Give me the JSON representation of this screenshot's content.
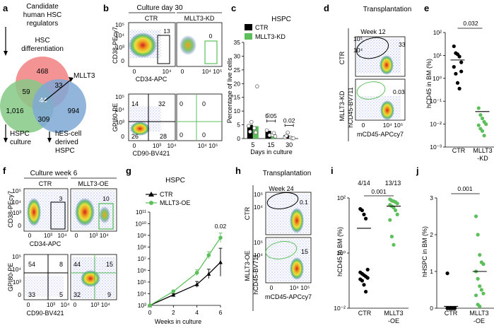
{
  "panels": {
    "a": {
      "label": "a",
      "title_line1": "Candidate",
      "title_line2": "human HSC",
      "title_line3": "regulators",
      "hsc_diff_line1": "HSC",
      "hsc_diff_line2": "differentiation",
      "venn_counts": [
        "468",
        "59",
        "33",
        "1,016",
        "44",
        "309",
        "994"
      ],
      "callout": "MLLT3",
      "hspc_culture_line1": "HSPC",
      "hspc_culture_line2": "culture",
      "hes_line1": "hES-cell",
      "hes_line2": "derived",
      "hes_line3": "HSPC"
    },
    "b": {
      "label": "b",
      "title": "Culture day 30",
      "col_ctr": "CTR",
      "col_kd": "MLLT3-KD",
      "top_ylabel": "CD38-PEcy7",
      "top_xlabel": "CD34-APC",
      "top_gate_ctr": "13",
      "top_gate_kd": "0",
      "bottom_ylabel": "GPI80-PE",
      "bottom_xlabel": "CD90-BV421",
      "ctr_quadrants": [
        "14",
        "32",
        "26",
        "28"
      ],
      "kd_quadrants": [
        "0",
        "0",
        "0",
        "0"
      ]
    },
    "c": {
      "label": "c",
      "title": "HSPC"
    },
    "d": {
      "label": "d",
      "title": "Transplantation",
      "week": "Week 12",
      "row_ctr": "CTR",
      "row_kd": "MLLT3-KD",
      "ylabel": "hCD45-BV711",
      "xlabel": "mCD45-APCcy7",
      "gate_ctr": "33",
      "gate_kd": "0.03"
    },
    "e": {
      "label": "e",
      "ylabel": "hCD45 in BM (%)",
      "pvalue": "0.032",
      "cat1": "CTR",
      "cat2_line1": "MLLT3",
      "cat2_line2": "-KD"
    },
    "f": {
      "label": "f",
      "title": "Culture week 6",
      "col_ctr": "CTR",
      "col_oe": "MLLT3-OE",
      "top_ylabel": "CD38-PEcy7",
      "top_xlabel": "CD34-APC",
      "top_gate_ctr": "3",
      "top_gate_oe": "10",
      "bottom_ylabel": "GPI80-PE",
      "bottom_xlabel": "CD90-BV421",
      "ctr_quadrants": [
        "54",
        "8",
        "33",
        "5"
      ],
      "oe_quadrants": [
        "44",
        "15",
        "32",
        "9"
      ]
    },
    "g": {
      "label": "g",
      "title": "HSPC"
    },
    "h": {
      "label": "h",
      "title": "Transplantation",
      "week": "Week 24",
      "row_ctr": "CTR",
      "row_oe": "MLLT3-OE",
      "ylabel": "hCD45-BV711",
      "xlabel": "mCD45-APCcy7",
      "gate_ctr": "0.1",
      "gate_oe": "15"
    },
    "i": {
      "label": "i",
      "ylabel": "hCD45 in BM (%)",
      "frac_ctr": "4/14",
      "frac_oe": "13/13",
      "pvalue": "0.001",
      "cat1": "CTR",
      "cat2_line1": "MLLT3",
      "cat2_line2": "-OE"
    },
    "j": {
      "label": "j",
      "ylabel": "hHSPC in BM (%)",
      "pvalue": "0.001",
      "cat1": "CTR",
      "cat2_line1": "MLLT3",
      "cat2_line2": "-OE"
    }
  },
  "colors": {
    "ctr": "#000000",
    "kd_oe": "#5cbf5c",
    "venn_red": "#f28080",
    "venn_green": "#86c986",
    "venn_blue": "#7fa8d6"
  },
  "chart_data": [
    {
      "id": "c",
      "type": "bar",
      "title": "HSPC",
      "xlabel": "Days in culture",
      "ylabel": "Percentage of live cells",
      "categories": [
        "5",
        "15",
        "30"
      ],
      "ylim": [
        0,
        35
      ],
      "yticks": [
        "0",
        "5",
        "10",
        "15",
        "20",
        "25",
        "30",
        "35"
      ],
      "series": [
        {
          "name": "CTR",
          "values": [
            5.0,
            2.8,
            1.2
          ]
        },
        {
          "name": "MLLT3-KD",
          "values": [
            4.5,
            1.5,
            0.2
          ]
        }
      ],
      "points": {
        "CTR": [
          [
            4.6,
            2.5,
            6.0
          ],
          [
            3.0,
            8.5,
            1.2
          ],
          [
            0.4,
            1.0,
            2.2
          ]
        ],
        "MLLT3-KD": [
          [
            3.8,
            2.2,
            19.0
          ],
          [
            1.3,
            2.0,
            0.8
          ],
          [
            0.4,
            0.1,
            0.1
          ]
        ]
      },
      "annotations": [
        {
          "category": "15",
          "text": "0.05"
        },
        {
          "category": "30",
          "text": "0.02"
        }
      ]
    },
    {
      "id": "g",
      "type": "line",
      "title": "HSPC",
      "xlabel": "Weeks in culture",
      "ylabel": "",
      "x": [
        0,
        2,
        4,
        5,
        6
      ],
      "xticks": [
        "0",
        "2",
        "4",
        "6"
      ],
      "ylim_log10": [
        3,
        11
      ],
      "yticks": [
        "10³",
        "10⁴",
        "10⁵",
        "10⁶",
        "10⁷",
        "10⁸",
        "10⁹",
        "10¹⁰",
        "10¹¹"
      ],
      "series": [
        {
          "name": "CTR",
          "log10_values": [
            3.0,
            3.9,
            4.8,
            5.7,
            6.7
          ],
          "log10_err": [
            0,
            0.1,
            0.25,
            0.4,
            1.2
          ]
        },
        {
          "name": "MLLT3-OE",
          "log10_values": [
            3.0,
            4.2,
            5.8,
            7.3,
            8.8
          ],
          "log10_err": [
            0,
            0.1,
            0.25,
            0.3,
            0.4
          ]
        }
      ],
      "annotation": "0.02"
    },
    {
      "id": "e",
      "type": "scatter",
      "ylim_log10": [
        -3,
        2
      ],
      "yticks": [
        "10⁻³",
        "10⁻²",
        "10⁻¹",
        "10⁰",
        "10¹",
        "10²"
      ],
      "categories": [
        "CTR",
        "MLLT3-KD"
      ],
      "log10_points": {
        "CTR": [
          1.4,
          1.1,
          1.05,
          0.95,
          0.7,
          0.5,
          0.2,
          -0.2,
          -0.45,
          0.3
        ],
        "MLLT3-KD": [
          -1.3,
          -1.6,
          -1.75,
          -1.9,
          -2.0,
          -2.05,
          -2.2,
          -2.3,
          -2.5
        ]
      },
      "log10_means": {
        "CTR": 0.8,
        "MLLT3-KD": -1.45
      }
    },
    {
      "id": "i",
      "type": "scatter",
      "ylim_log10": [
        -2,
        2
      ],
      "yticks": [
        "10⁻²",
        "10⁰",
        "10²"
      ],
      "categories": [
        "CTR",
        "MLLT3-OE"
      ],
      "log10_points": {
        "CTR": [
          1.6,
          1.55,
          1.4,
          1.25,
          -0.6,
          -0.7,
          -0.75,
          -0.8,
          -0.85,
          -0.9,
          -0.95,
          -1.0,
          -1.15,
          -1.4
        ],
        "MLLT3-OE": [
          1.95,
          1.9,
          1.88,
          1.85,
          1.8,
          1.75,
          1.7,
          1.65,
          1.55,
          1.4,
          1.2,
          0.6,
          0.3
        ]
      },
      "log10_means": {
        "CTR": 0.9,
        "MLLT3-OE": 1.7
      }
    },
    {
      "id": "j",
      "type": "scatter",
      "ylim": [
        0,
        3
      ],
      "yticks": [
        "0",
        "1",
        "2",
        "3"
      ],
      "categories": [
        "CTR",
        "MLLT3-OE"
      ],
      "points": {
        "CTR": [
          0.95,
          0,
          0,
          0,
          0,
          0,
          0,
          0,
          0,
          0,
          0,
          0,
          0
        ],
        "MLLT3-OE": [
          2.5,
          2.0,
          1.45,
          1.25,
          1.2,
          1.0,
          0.8,
          0.6,
          0.5,
          0.4,
          0.35,
          0.1,
          0.05
        ]
      },
      "means": {
        "CTR": 0.05,
        "MLLT3-OE": 1.0
      }
    }
  ]
}
